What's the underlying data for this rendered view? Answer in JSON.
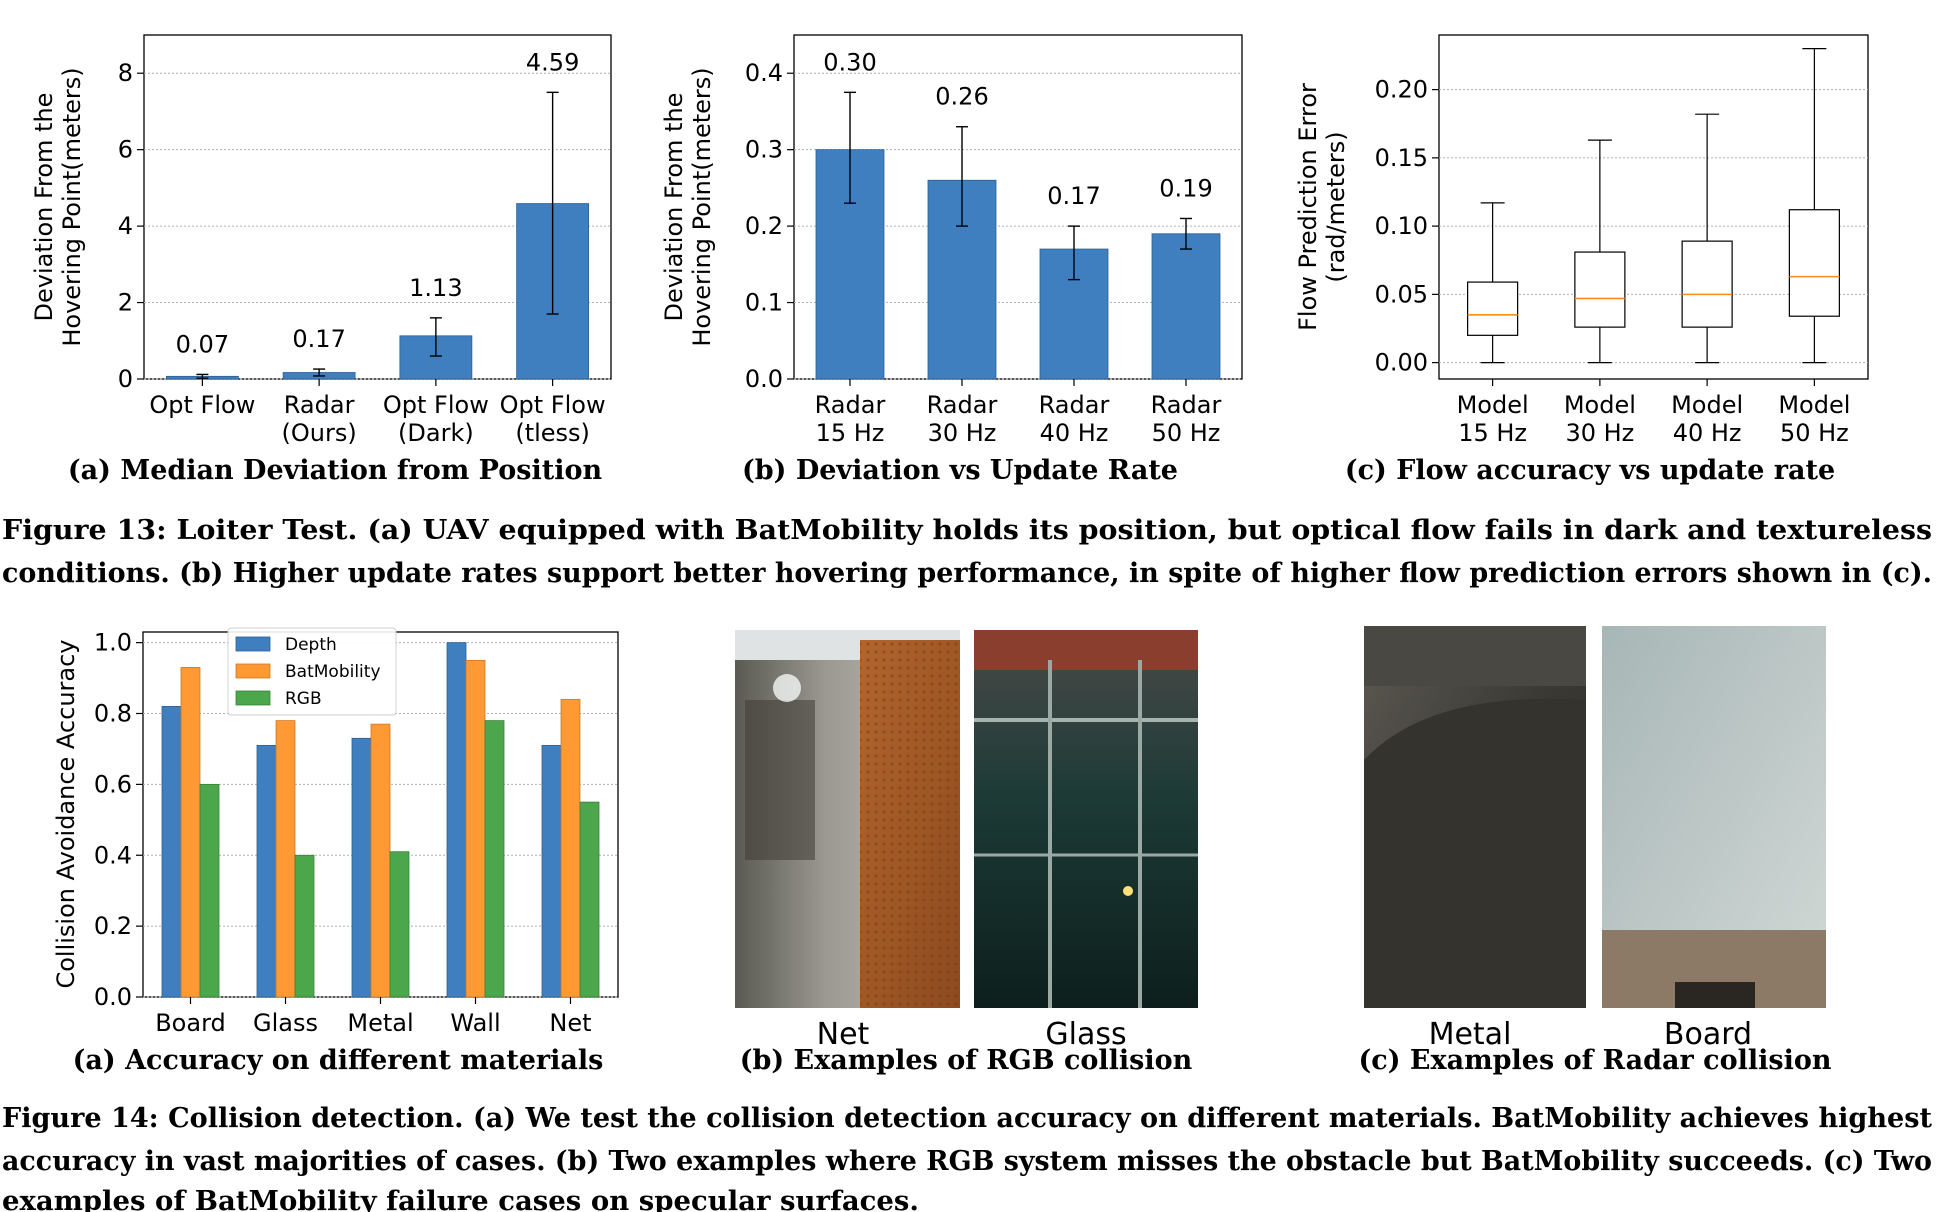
{
  "chart_data": [
    {
      "type": "bar",
      "ylabel": "Deviation From the\nHovering Point(meters)",
      "ylim": [
        0,
        9
      ],
      "yticks": [
        "0",
        "2",
        "4",
        "6",
        "8"
      ],
      "categories": [
        "Opt Flow",
        "Radar\n(Ours)",
        "Opt Flow\n(Dark)",
        "Opt Flow\n(tless)"
      ],
      "values": [
        0.07,
        0.17,
        1.13,
        4.59
      ],
      "value_labels": [
        "0.07",
        "0.17",
        "1.13",
        "4.59"
      ],
      "error_low": [
        0.02,
        0.08,
        0.6,
        1.7
      ],
      "error_high": [
        0.12,
        0.26,
        1.6,
        7.5
      ],
      "caption": "(a) Median Deviation from Position",
      "grid": true
    },
    {
      "type": "bar",
      "ylabel": "Deviation From the\nHovering Point(meters)",
      "ylim": [
        0,
        0.45
      ],
      "yticks": [
        "0.0",
        "0.1",
        "0.2",
        "0.3",
        "0.4"
      ],
      "categories": [
        "Radar\n15 Hz",
        "Radar\n30 Hz",
        "Radar\n40 Hz",
        "Radar\n50 Hz"
      ],
      "values": [
        0.3,
        0.26,
        0.17,
        0.19
      ],
      "value_labels": [
        "0.30",
        "0.26",
        "0.17",
        "0.19"
      ],
      "error_low": [
        0.23,
        0.2,
        0.13,
        0.17
      ],
      "error_high": [
        0.375,
        0.33,
        0.2,
        0.21
      ],
      "caption": "(b) Deviation vs Update Rate",
      "grid": true
    },
    {
      "type": "box",
      "ylabel": "Flow Prediction Error\n(rad/meters)",
      "ylim": [
        -0.012,
        0.24
      ],
      "yticks": [
        "0.00",
        "0.05",
        "0.10",
        "0.15",
        "0.20"
      ],
      "categories": [
        "Model\n15 Hz",
        "Model\n30 Hz",
        "Model\n40 Hz",
        "Model\n50 Hz"
      ],
      "boxes": [
        {
          "min": 0.0,
          "q1": 0.02,
          "median": 0.035,
          "q3": 0.059,
          "max": 0.117
        },
        {
          "min": 0.0,
          "q1": 0.026,
          "median": 0.047,
          "q3": 0.081,
          "max": 0.163
        },
        {
          "min": 0.0,
          "q1": 0.026,
          "median": 0.05,
          "q3": 0.089,
          "max": 0.182
        },
        {
          "min": 0.0,
          "q1": 0.034,
          "median": 0.063,
          "q3": 0.112,
          "max": 0.23
        }
      ],
      "caption": "(c) Flow accuracy vs update rate",
      "grid": true
    },
    {
      "type": "bar",
      "ylabel": "Collision Avoidance Accuracy",
      "ylim": [
        0,
        1.03
      ],
      "yticks": [
        "0.0",
        "0.2",
        "0.4",
        "0.6",
        "0.8",
        "1.0"
      ],
      "categories": [
        "Board",
        "Glass",
        "Metal",
        "Wall",
        "Net"
      ],
      "series": [
        {
          "name": "Depth",
          "values": [
            0.82,
            0.71,
            0.73,
            1.0,
            0.71
          ]
        },
        {
          "name": "BatMobility",
          "values": [
            0.93,
            0.78,
            0.77,
            0.95,
            0.84
          ]
        },
        {
          "name": "RGB",
          "values": [
            0.6,
            0.4,
            0.41,
            0.78,
            0.55
          ]
        }
      ],
      "legend": "top-left",
      "caption": "(a) Accuracy on different materials",
      "grid": true
    }
  ],
  "colors": {
    "blue": "#3f7fbf",
    "orange": "#ff9933",
    "green": "#4ca64c",
    "median": "#ff8c1a"
  },
  "fig13_caption": [
    "Figure 13: Loiter Test. (a) UAV equipped with BatMobility holds its position, but optical flow fails in dark and textureless",
    "conditions. (b) Higher update rates support better hovering performance, in spite of higher flow prediction errors shown in (c)."
  ],
  "photos": {
    "rgb": {
      "labels": [
        "Net",
        "Glass"
      ],
      "caption": "(b) Examples of RGB collision"
    },
    "radar": {
      "labels": [
        "Metal",
        "Board"
      ],
      "caption": "(c) Examples of Radar collision"
    }
  },
  "fig14_caption": [
    "Figure 14: Collision detection. (a) We test the collision detection accuracy on different materials. BatMobility achieves highest",
    "accuracy in vast majorities of cases. (b) Two examples where RGB system misses the obstacle but BatMobility succeeds. (c) Two",
    "examples of BatMobility failure cases on specular surfaces."
  ]
}
